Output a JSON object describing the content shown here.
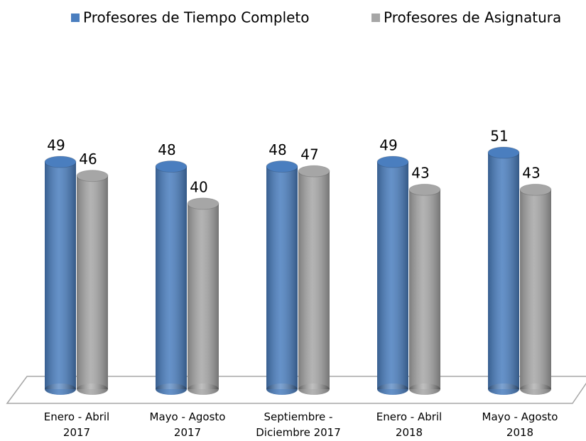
{
  "chart_data": {
    "type": "bar",
    "categories": [
      "Enero - Abril 2017",
      "Mayo - Agosto 2017",
      "Septiembre - Diciembre 2017",
      "Enero - Abril 2018",
      "Mayo - Agosto 2018"
    ],
    "series": [
      {
        "name": "Profesores de Tiempo Completo",
        "color": "#4a7ebf",
        "values": [
          49,
          48,
          48,
          49,
          51
        ]
      },
      {
        "name": "Profesores de Asignatura",
        "color": "#a6a6a6",
        "values": [
          46,
          40,
          47,
          43,
          43
        ]
      }
    ],
    "legend": "top"
  }
}
